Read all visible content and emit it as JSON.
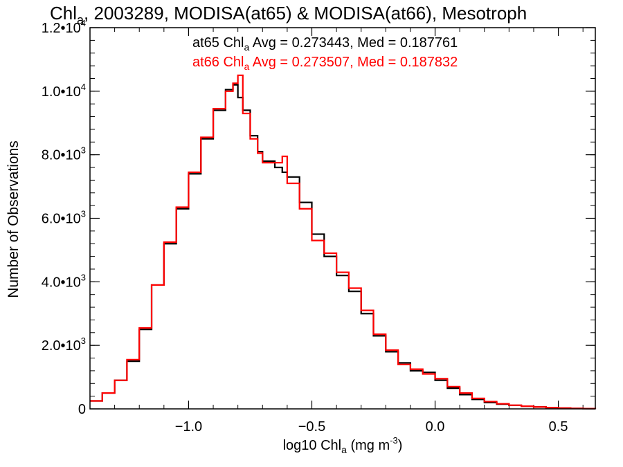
{
  "chart_data": {
    "type": "line",
    "title": {
      "prefix": "Chl",
      "sub": "a",
      "rest": ", 2003289, MODISA(at65) & MODISA(at66), Mesotroph"
    },
    "xlabel": {
      "prefix": "log10 Chl",
      "sub": "a",
      "mid": " (mg m",
      "sup": "-3",
      "suffix": ")"
    },
    "ylabel": "Number of Observations",
    "xlim": [
      -1.4,
      0.65
    ],
    "ylim": [
      0,
      12000
    ],
    "x_ticks": [
      {
        "value": -1.0,
        "label": "−1.0"
      },
      {
        "value": -0.5,
        "label": "−0.5"
      },
      {
        "value": 0.0,
        "label": "0.0"
      },
      {
        "value": 0.5,
        "label": "0.5"
      }
    ],
    "y_ticks": [
      {
        "value": 0,
        "mant": "0",
        "exp": ""
      },
      {
        "value": 2000,
        "mant": "2.0•10",
        "exp": "3"
      },
      {
        "value": 4000,
        "mant": "4.0•10",
        "exp": "3"
      },
      {
        "value": 6000,
        "mant": "6.0•10",
        "exp": "3"
      },
      {
        "value": 8000,
        "mant": "8.0•10",
        "exp": "3"
      },
      {
        "value": 10000,
        "mant": "1.0•10",
        "exp": "4"
      },
      {
        "value": 12000,
        "mant": "1.2•10",
        "exp": "4"
      }
    ],
    "annotations": [
      {
        "prefix": "at65 Chl",
        "sub": "a",
        "rest": " Avg = 0.273443, Med = 0.187761",
        "color": "#000000"
      },
      {
        "prefix": "at66 Chl",
        "sub": "a",
        "rest": " Avg = 0.273507, Med = 0.187832",
        "color": "#ff0000"
      }
    ],
    "series": [
      {
        "color": "#000000",
        "x": [
          -1.4,
          -1.35,
          -1.3,
          -1.25,
          -1.2,
          -1.15,
          -1.1,
          -1.05,
          -1.0,
          -0.95,
          -0.9,
          -0.85,
          -0.82,
          -0.8,
          -0.78,
          -0.75,
          -0.72,
          -0.7,
          -0.65,
          -0.62,
          -0.6,
          -0.55,
          -0.5,
          -0.45,
          -0.4,
          -0.35,
          -0.3,
          -0.25,
          -0.2,
          -0.15,
          -0.1,
          -0.05,
          0.0,
          0.05,
          0.1,
          0.15,
          0.2,
          0.25,
          0.3,
          0.35,
          0.4,
          0.45,
          0.5,
          0.55,
          0.6,
          0.65
        ],
        "y": [
          250,
          500,
          900,
          1500,
          2500,
          3900,
          5200,
          6300,
          7400,
          8500,
          9400,
          10050,
          10200,
          9800,
          9400,
          8600,
          8100,
          7800,
          7600,
          7450,
          7300,
          6500,
          5500,
          4800,
          4200,
          3700,
          3000,
          2300,
          1800,
          1450,
          1200,
          1150,
          900,
          650,
          450,
          300,
          200,
          150,
          110,
          80,
          60,
          40,
          25,
          15,
          10,
          5
        ]
      },
      {
        "color": "#ff0000",
        "x": [
          -1.4,
          -1.35,
          -1.3,
          -1.25,
          -1.2,
          -1.15,
          -1.1,
          -1.05,
          -1.0,
          -0.95,
          -0.9,
          -0.85,
          -0.82,
          -0.8,
          -0.78,
          -0.75,
          -0.72,
          -0.7,
          -0.65,
          -0.62,
          -0.6,
          -0.55,
          -0.5,
          -0.45,
          -0.4,
          -0.35,
          -0.3,
          -0.25,
          -0.2,
          -0.15,
          -0.1,
          -0.05,
          0.0,
          0.05,
          0.1,
          0.15,
          0.2,
          0.25,
          0.3,
          0.35,
          0.4,
          0.45,
          0.5,
          0.55,
          0.6,
          0.65
        ],
        "y": [
          250,
          500,
          900,
          1550,
          2550,
          3900,
          5250,
          6350,
          7450,
          8550,
          9450,
          10000,
          10250,
          10500,
          9300,
          8500,
          8050,
          7750,
          7750,
          7950,
          7100,
          6300,
          5300,
          4900,
          4300,
          3800,
          3100,
          2350,
          1850,
          1400,
          1250,
          1100,
          950,
          700,
          500,
          330,
          230,
          160,
          115,
          85,
          60,
          40,
          25,
          15,
          10,
          5
        ]
      }
    ],
    "grid": false
  }
}
